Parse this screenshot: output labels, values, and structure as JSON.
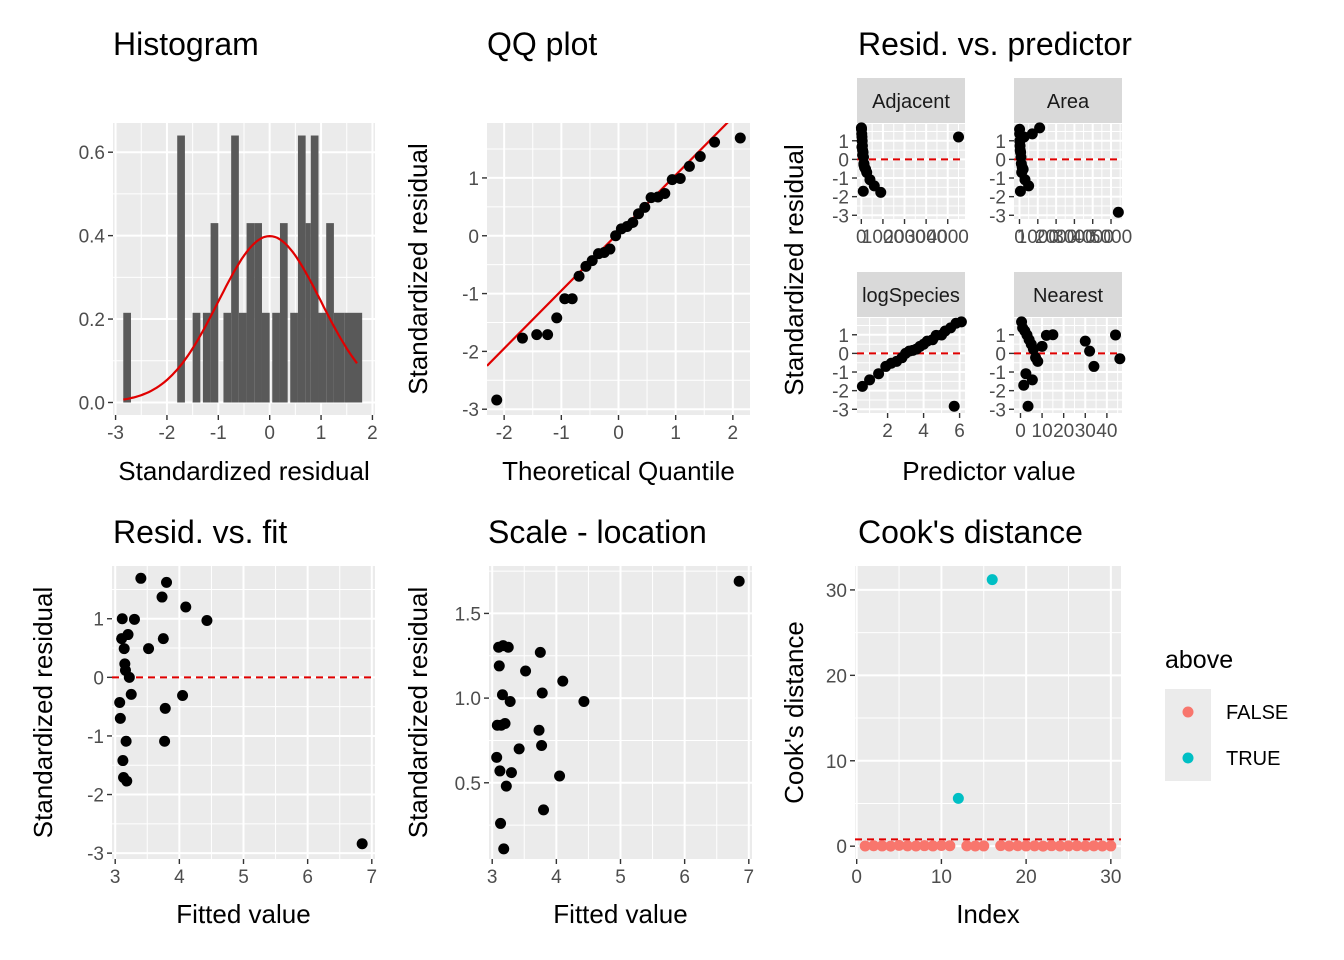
{
  "chart_data": [
    {
      "id": "hist",
      "type": "bar",
      "title": "Histogram",
      "xlabel": "Standardized residual",
      "ylabel": "",
      "xlim": [
        -3.05,
        2.05
      ],
      "ylim": [
        -0.03,
        0.67
      ],
      "xticks": [
        -3,
        -2,
        -1,
        0,
        1,
        2
      ],
      "yticks": [
        0.0,
        0.2,
        0.4,
        0.6
      ],
      "ytick_labels": [
        "0.0",
        "0.2",
        "0.4",
        "0.6"
      ],
      "bins": [
        {
          "x0": -2.85,
          "x1": -2.7,
          "density": 0.215
        },
        {
          "x0": -1.8,
          "x1": -1.65,
          "density": 0.64
        },
        {
          "x0": -1.5,
          "x1": -1.35,
          "density": 0.215
        },
        {
          "x0": -1.3,
          "x1": -1.15,
          "density": 0.215
        },
        {
          "x0": -1.15,
          "x1": -1.0,
          "density": 0.43
        },
        {
          "x0": -0.9,
          "x1": -0.75,
          "density": 0.215
        },
        {
          "x0": -0.75,
          "x1": -0.6,
          "density": 0.64
        },
        {
          "x0": -0.6,
          "x1": -0.45,
          "density": 0.215
        },
        {
          "x0": -0.45,
          "x1": -0.3,
          "density": 0.43
        },
        {
          "x0": -0.3,
          "x1": -0.15,
          "density": 0.43
        },
        {
          "x0": -0.15,
          "x1": 0.0,
          "density": 0.215
        },
        {
          "x0": 0.05,
          "x1": 0.2,
          "density": 0.215
        },
        {
          "x0": 0.2,
          "x1": 0.35,
          "density": 0.43
        },
        {
          "x0": 0.4,
          "x1": 0.55,
          "density": 0.215
        },
        {
          "x0": 0.55,
          "x1": 0.7,
          "density": 0.64
        },
        {
          "x0": 0.7,
          "x1": 0.8,
          "density": 0.43
        },
        {
          "x0": 0.8,
          "x1": 0.95,
          "density": 0.64
        },
        {
          "x0": 0.95,
          "x1": 1.1,
          "density": 0.215
        },
        {
          "x0": 1.1,
          "x1": 1.25,
          "density": 0.43
        },
        {
          "x0": 1.25,
          "x1": 1.45,
          "density": 0.215
        },
        {
          "x0": 1.45,
          "x1": 1.8,
          "density": 0.215
        }
      ],
      "curve": "normal density, mean 0, sd 1",
      "curve_color": "#e00000",
      "bar_color": "#595959"
    },
    {
      "id": "qq",
      "type": "scatter",
      "title": "QQ plot",
      "xlabel": "Theoretical Quantile",
      "ylabel": "Standardized residual",
      "xlim": [
        -2.3,
        2.3
      ],
      "ylim": [
        -3.1,
        1.95
      ],
      "xticks": [
        -2,
        -1,
        0,
        1,
        2
      ],
      "yticks": [
        -3,
        -2,
        -1,
        0,
        1
      ],
      "x": [
        -2.13,
        -1.68,
        -1.43,
        -1.24,
        -1.08,
        -0.94,
        -0.81,
        -0.69,
        -0.57,
        -0.46,
        -0.35,
        -0.25,
        -0.15,
        -0.05,
        0.05,
        0.15,
        0.25,
        0.35,
        0.46,
        0.57,
        0.69,
        0.81,
        0.94,
        1.08,
        1.24,
        1.43,
        1.68,
        2.13
      ],
      "y": [
        -2.84,
        -1.77,
        -1.71,
        -1.71,
        -1.42,
        -1.09,
        -1.09,
        -0.7,
        -0.53,
        -0.43,
        -0.31,
        -0.29,
        -0.23,
        0.0,
        0.12,
        0.16,
        0.23,
        0.38,
        0.49,
        0.66,
        0.67,
        0.73,
        0.97,
        0.99,
        1.2,
        1.37,
        1.62,
        1.69
      ],
      "line": {
        "intercept": 0.05,
        "slope": 1.0,
        "color": "#e00000"
      }
    },
    {
      "id": "rvp",
      "type": "scatter",
      "title": "Resid. vs. predictor",
      "xlabel": "Predictor value",
      "ylabel": "Standardized residual",
      "ylim": [
        -3.2,
        1.9
      ],
      "yticks": [
        -3,
        -2,
        -1,
        0,
        1
      ],
      "reference_line": {
        "y": 0,
        "color": "#e00000",
        "style": "dashed"
      },
      "facets": [
        {
          "name": "Adjacent",
          "xlim": [
            -200,
            4800
          ],
          "xticks": [
            0,
            1000,
            2000,
            3000,
            4000
          ],
          "x": [
            5,
            10,
            20,
            30,
            40,
            50,
            60,
            80,
            100,
            120,
            150,
            200,
            250,
            400,
            600,
            900,
            4500,
            30,
            60,
            90,
            120
          ],
          "y": [
            1.69,
            1.62,
            1.37,
            1.2,
            0.99,
            0.73,
            0.49,
            0.38,
            0.12,
            -0.23,
            -0.43,
            -0.53,
            -0.7,
            -1.09,
            -1.42,
            -1.77,
            1.2,
            0.66,
            0.23,
            -1.71,
            -0.29
          ]
        },
        {
          "name": "Area",
          "xlim": [
            -300,
            5600
          ],
          "xticks": [
            0,
            1000,
            2000,
            3000,
            4000,
            5000
          ],
          "x": [
            5,
            10,
            20,
            30,
            40,
            60,
            80,
            100,
            150,
            200,
            300,
            500,
            700,
            1100,
            5400,
            50,
            120,
            250
          ],
          "y": [
            1.62,
            1.37,
            0.99,
            0.73,
            0.49,
            0.38,
            0.12,
            -0.23,
            -0.43,
            -0.53,
            -1.09,
            -1.42,
            1.37,
            1.69,
            -2.84,
            -1.71,
            -0.7,
            1.2
          ]
        },
        {
          "name": "logSpecies",
          "xlim": [
            0.3,
            6.3
          ],
          "xticks": [
            2,
            4,
            6
          ],
          "x": [
            0.6,
            1.0,
            1.5,
            1.9,
            2.2,
            2.5,
            2.8,
            3.0,
            3.2,
            3.4,
            3.6,
            3.8,
            4.0,
            4.2,
            4.5,
            4.7,
            5.0,
            5.2,
            5.5,
            5.8,
            6.1,
            5.7
          ],
          "y": [
            -1.77,
            -1.42,
            -1.09,
            -0.7,
            -0.53,
            -0.43,
            -0.23,
            0.0,
            0.12,
            0.16,
            0.23,
            0.38,
            0.49,
            0.66,
            0.73,
            0.97,
            0.99,
            1.2,
            1.37,
            1.62,
            1.69,
            -2.84
          ]
        },
        {
          "name": "Nearest",
          "xlim": [
            -3,
            47
          ],
          "xticks": [
            0,
            10,
            20,
            30,
            40
          ],
          "x": [
            0.5,
            1,
            2,
            3,
            4,
            5,
            6,
            7,
            8,
            10,
            12,
            15,
            30,
            32,
            34,
            44,
            46,
            1.5,
            2.5,
            3.5,
            5.5
          ],
          "y": [
            1.69,
            1.37,
            1.2,
            0.99,
            0.73,
            0.49,
            0.23,
            -0.23,
            -0.43,
            0.38,
            0.97,
            1.0,
            0.66,
            0.12,
            -0.7,
            0.99,
            -0.29,
            -1.71,
            -1.09,
            -2.84,
            -1.42
          ]
        }
      ]
    },
    {
      "id": "rvf",
      "type": "scatter",
      "title": "Resid. vs. fit",
      "xlabel": "Fitted value",
      "ylabel": "Standardized residual",
      "xlim": [
        2.95,
        7.05
      ],
      "ylim": [
        -3.1,
        1.9
      ],
      "xticks": [
        3,
        4,
        5,
        6,
        7
      ],
      "yticks": [
        -3,
        -2,
        -1,
        0,
        1
      ],
      "x": [
        3.07,
        3.08,
        3.1,
        3.11,
        3.12,
        3.13,
        3.14,
        3.15,
        3.16,
        3.17,
        3.18,
        3.2,
        3.22,
        3.25,
        3.3,
        3.4,
        3.52,
        3.73,
        3.75,
        3.77,
        3.78,
        3.8,
        4.05,
        4.1,
        4.43,
        6.85
      ],
      "y": [
        -0.43,
        -0.7,
        0.66,
        1.0,
        -1.42,
        -1.71,
        0.49,
        0.23,
        0.12,
        -1.09,
        -1.77,
        0.73,
        0.0,
        -0.29,
        0.99,
        1.69,
        0.49,
        1.37,
        0.66,
        -1.09,
        -0.53,
        1.62,
        -0.31,
        1.2,
        0.97,
        -2.84
      ]
    },
    {
      "id": "scaleloc",
      "type": "scatter",
      "title": "Scale - location",
      "xlabel": "Fitted value",
      "ylabel": "Standardized residual",
      "xlim": [
        2.95,
        7.05
      ],
      "ylim": [
        0.05,
        1.78
      ],
      "xticks": [
        3,
        4,
        5,
        6,
        7
      ],
      "yticks": [
        0.5,
        1.0,
        1.5
      ],
      "ytick_labels": [
        "0.5",
        "1.0",
        "1.5"
      ],
      "x": [
        3.07,
        3.08,
        3.1,
        3.11,
        3.12,
        3.13,
        3.14,
        3.16,
        3.17,
        3.18,
        3.2,
        3.22,
        3.25,
        3.28,
        3.3,
        3.42,
        3.52,
        3.73,
        3.75,
        3.77,
        3.78,
        3.8,
        4.05,
        4.1,
        4.43,
        6.85
      ],
      "y": [
        0.65,
        0.84,
        1.3,
        1.19,
        0.57,
        0.26,
        0.84,
        1.02,
        1.31,
        0.11,
        0.85,
        0.48,
        1.3,
        0.98,
        0.56,
        0.7,
        1.16,
        0.81,
        1.27,
        0.72,
        1.03,
        0.34,
        0.54,
        1.1,
        0.98,
        1.69
      ]
    },
    {
      "id": "cooks",
      "type": "scatter",
      "title": "Cook's distance",
      "xlabel": "Index",
      "ylabel": "Cook's distance",
      "xlim": [
        -0.2,
        31.2
      ],
      "ylim": [
        -1.5,
        32.8
      ],
      "xticks": [
        0,
        10,
        20,
        30
      ],
      "yticks": [
        0,
        10,
        20,
        30
      ],
      "threshold": {
        "y": 0.8,
        "color": "#e00000",
        "style": "dashed"
      },
      "x": [
        1,
        2,
        3,
        4,
        5,
        6,
        7,
        8,
        9,
        10,
        11,
        12,
        13,
        14,
        15,
        16,
        17,
        18,
        19,
        20,
        21,
        22,
        23,
        24,
        25,
        26,
        27,
        28,
        29,
        30
      ],
      "y": [
        0.02,
        0.05,
        0.03,
        0.01,
        0.1,
        0.04,
        0.02,
        0.06,
        0.03,
        0.08,
        0.05,
        5.6,
        0.04,
        0.02,
        0.03,
        31.2,
        0.07,
        0.02,
        0.05,
        0.03,
        0.04,
        0.01,
        0.06,
        0.02,
        0.03,
        0.05,
        0.01,
        0.04,
        0.02,
        0.03
      ],
      "above": [
        false,
        false,
        false,
        false,
        false,
        false,
        false,
        false,
        false,
        false,
        false,
        true,
        false,
        false,
        false,
        true,
        false,
        false,
        false,
        false,
        false,
        false,
        false,
        false,
        false,
        false,
        false,
        false,
        false,
        false
      ],
      "legend": {
        "title": "above",
        "entries": [
          {
            "label": "FALSE",
            "color": "#f8766d"
          },
          {
            "label": "TRUE",
            "color": "#00bfc4"
          }
        ],
        "position": "right"
      }
    }
  ]
}
